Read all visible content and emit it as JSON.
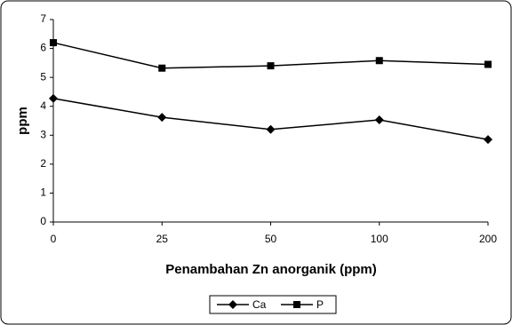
{
  "chart_data": {
    "type": "line",
    "xlabel": "Penambahan Zn anorganik (ppm)",
    "ylabel": "ppm",
    "categories": [
      "0",
      "25",
      "50",
      "100",
      "200"
    ],
    "series": [
      {
        "name": "Ca",
        "color": "#000000",
        "marker": "diamond",
        "values": [
          4.27,
          3.62,
          3.2,
          3.53,
          2.85
        ]
      },
      {
        "name": "P",
        "color": "#000000",
        "marker": "square",
        "values": [
          6.2,
          5.32,
          5.4,
          5.58,
          5.45
        ]
      }
    ],
    "ylim": [
      0,
      7
    ],
    "yticks": [
      0,
      1,
      2,
      3,
      4,
      5,
      6,
      7
    ],
    "grid": false,
    "legend": "bottom"
  }
}
